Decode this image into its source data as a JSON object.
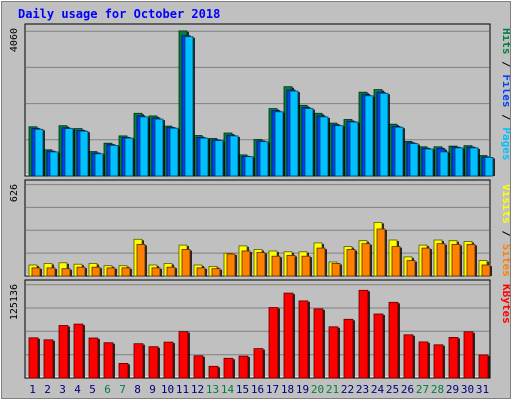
{
  "title": "Daily usage for October 2018",
  "colors": {
    "background": "#c0c0c0",
    "plot_background": "#c0c0c0",
    "title": "#0000ff",
    "hits": "#008040",
    "files": "#0040ff",
    "pages": "#00c0ff",
    "visits": "#ffff00",
    "sites": "#ff8000",
    "kbytes": "#ff0000",
    "weekend_day_label": "#008040",
    "weekday_label": "#000080"
  },
  "panels": {
    "top": {
      "max_label": "4060",
      "legend": [
        "Pages",
        "Files",
        "Hits"
      ]
    },
    "middle": {
      "max_label": "626",
      "legend": [
        "Sites",
        "Visits"
      ]
    },
    "bottom": {
      "max_label": "125136",
      "legend": [
        "KBytes"
      ]
    }
  },
  "chart_data": [
    {
      "type": "bar",
      "title": "Daily usage for October 2018",
      "categories": [
        "1",
        "2",
        "3",
        "4",
        "5",
        "6",
        "7",
        "8",
        "9",
        "10",
        "11",
        "12",
        "13",
        "14",
        "15",
        "16",
        "17",
        "18",
        "19",
        "20",
        "21",
        "22",
        "23",
        "24",
        "25",
        "26",
        "27",
        "28",
        "29",
        "30",
        "31"
      ],
      "weekend_days": [
        "6",
        "7",
        "13",
        "14",
        "20",
        "21",
        "27",
        "28"
      ],
      "ylim": [
        0,
        4060
      ],
      "series": [
        {
          "name": "Hits",
          "values": [
            1350,
            720,
            1380,
            1300,
            670,
            900,
            1100,
            1720,
            1650,
            1370,
            3980,
            1110,
            1030,
            1180,
            580,
            1000,
            1850,
            2450,
            1940,
            1720,
            1450,
            1550,
            2300,
            2370,
            1420,
            950,
            800,
            800,
            820,
            830,
            560
          ]
        },
        {
          "name": "Files",
          "values": [
            1300,
            680,
            1320,
            1250,
            630,
            860,
            1060,
            1650,
            1590,
            1330,
            3850,
            1060,
            990,
            1120,
            540,
            960,
            1790,
            2360,
            1880,
            1650,
            1400,
            1500,
            2230,
            2300,
            1360,
            910,
            760,
            750,
            790,
            790,
            520
          ]
        },
        {
          "name": "Pages",
          "values": [
            1280,
            660,
            1300,
            1230,
            610,
            840,
            1040,
            1620,
            1560,
            1310,
            3820,
            1040,
            970,
            1100,
            530,
            940,
            1760,
            2330,
            1850,
            1620,
            1380,
            1480,
            2200,
            2270,
            1340,
            890,
            740,
            660,
            770,
            770,
            510
          ]
        }
      ]
    },
    {
      "type": "bar",
      "categories": [
        "1",
        "2",
        "3",
        "4",
        "5",
        "6",
        "7",
        "8",
        "9",
        "10",
        "11",
        "12",
        "13",
        "14",
        "15",
        "16",
        "17",
        "18",
        "19",
        "20",
        "21",
        "22",
        "23",
        "24",
        "25",
        "26",
        "27",
        "28",
        "29",
        "30",
        "31"
      ],
      "ylim": [
        0,
        626
      ],
      "series": [
        {
          "name": "Visits",
          "values": [
            75,
            85,
            90,
            80,
            85,
            70,
            70,
            250,
            75,
            85,
            210,
            75,
            65,
            155,
            205,
            180,
            170,
            165,
            165,
            225,
            95,
            200,
            240,
            365,
            245,
            130,
            210,
            245,
            240,
            235,
            105
          ]
        },
        {
          "name": "Sites",
          "values": [
            55,
            55,
            50,
            60,
            60,
            55,
            55,
            215,
            55,
            60,
            180,
            55,
            50,
            150,
            170,
            160,
            135,
            140,
            135,
            190,
            85,
            180,
            220,
            320,
            200,
            105,
            190,
            220,
            215,
            215,
            75
          ]
        }
      ]
    },
    {
      "type": "bar",
      "categories": [
        "1",
        "2",
        "3",
        "4",
        "5",
        "6",
        "7",
        "8",
        "9",
        "10",
        "11",
        "12",
        "13",
        "14",
        "15",
        "16",
        "17",
        "18",
        "19",
        "20",
        "21",
        "22",
        "23",
        "24",
        "25",
        "26",
        "27",
        "28",
        "29",
        "30",
        "31"
      ],
      "ylim": [
        0,
        125136
      ],
      "series": [
        {
          "name": "KBytes",
          "values": [
            53500,
            50800,
            69900,
            71800,
            53300,
            47000,
            19500,
            45700,
            41700,
            47800,
            61800,
            29500,
            15600,
            26200,
            29200,
            39100,
            93800,
            113000,
            102600,
            92000,
            68100,
            78100,
            116800,
            85200,
            100800,
            57500,
            48000,
            44200,
            54100,
            61500,
            30800
          ]
        }
      ]
    }
  ]
}
